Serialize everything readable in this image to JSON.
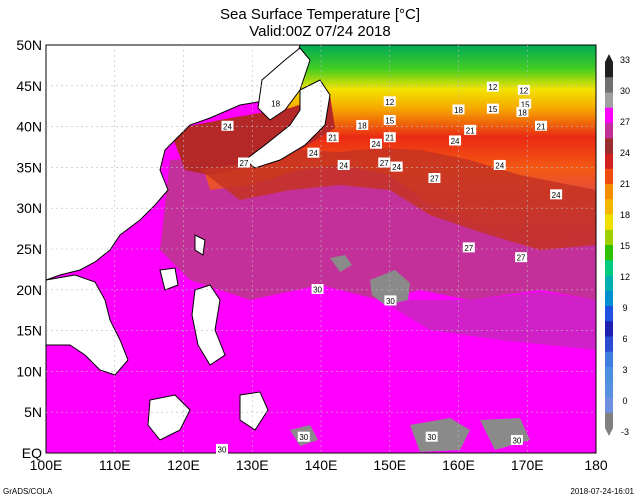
{
  "title": "Sea Surface Temperature [°C]",
  "subtitle": "Valid:00Z 07/24 2018",
  "footer_left": "GrADS/COLA",
  "footer_right": "2018-07-24-16:01",
  "axes": {
    "lon_ticks": [
      "100E",
      "110E",
      "120E",
      "130E",
      "140E",
      "150E",
      "160E",
      "170E",
      "180"
    ],
    "lat_ticks": [
      "50N",
      "45N",
      "40N",
      "35N",
      "30N",
      "25N",
      "20N",
      "15N",
      "10N",
      "5N",
      "EQ"
    ],
    "lon_range": [
      100,
      180
    ],
    "lat_range": [
      0,
      50
    ],
    "grid": true
  },
  "colorbar": {
    "labels": [
      "33",
      "30",
      "27",
      "24",
      "21",
      "18",
      "15",
      "12",
      "9",
      "6",
      "3",
      "0",
      "-3"
    ],
    "colors": [
      "#202020",
      "#707070",
      "#a0a0a0",
      "#ff00ff",
      "#c0309a",
      "#9a2d2d",
      "#d02020",
      "#f04c10",
      "#f28c00",
      "#f5b800",
      "#f0e000",
      "#a0d000",
      "#30c000",
      "#00cc80",
      "#00b0b0",
      "#0090d0",
      "#2050e0",
      "#2020b0",
      "#2b4bd0",
      "#3f7ee0",
      "#4c8fe0",
      "#5890e0",
      "#6f8fe0",
      "#808080"
    ]
  },
  "contour_labels": [
    {
      "v": "12",
      "lon": 165,
      "lat": 44.9
    },
    {
      "v": "12",
      "lon": 169.5,
      "lat": 44.5
    },
    {
      "v": "12",
      "lon": 150,
      "lat": 43.1
    },
    {
      "v": "15",
      "lon": 165,
      "lat": 42.2
    },
    {
      "v": "15",
      "lon": 169.7,
      "lat": 42.8
    },
    {
      "v": "15",
      "lon": 150,
      "lat": 40.8
    },
    {
      "v": "18",
      "lon": 133.4,
      "lat": 42.9
    },
    {
      "v": "18",
      "lon": 146,
      "lat": 40.2
    },
    {
      "v": "18",
      "lon": 160,
      "lat": 42.1
    },
    {
      "v": "18",
      "lon": 169.3,
      "lat": 41.8
    },
    {
      "v": "21",
      "lon": 141.7,
      "lat": 38.7
    },
    {
      "v": "21",
      "lon": 161.7,
      "lat": 39.6
    },
    {
      "v": "21",
      "lon": 172,
      "lat": 40.1
    },
    {
      "v": "21",
      "lon": 150,
      "lat": 38.7
    },
    {
      "v": "24",
      "lon": 126.4,
      "lat": 40.1
    },
    {
      "v": "24",
      "lon": 148,
      "lat": 37.9
    },
    {
      "v": "24",
      "lon": 159.5,
      "lat": 38.3
    },
    {
      "v": "24",
      "lon": 138.9,
      "lat": 36.8
    },
    {
      "v": "24",
      "lon": 143.3,
      "lat": 35.3
    },
    {
      "v": "24",
      "lon": 151,
      "lat": 35.1
    },
    {
      "v": "24",
      "lon": 166,
      "lat": 35.3
    },
    {
      "v": "24",
      "lon": 174.2,
      "lat": 31.7
    },
    {
      "v": "27",
      "lon": 128.8,
      "lat": 35.6
    },
    {
      "v": "27",
      "lon": 149.2,
      "lat": 35.6
    },
    {
      "v": "27",
      "lon": 156.5,
      "lat": 33.7
    },
    {
      "v": "27",
      "lon": 161.5,
      "lat": 25.2
    },
    {
      "v": "27",
      "lon": 169.1,
      "lat": 24.0
    },
    {
      "v": "30",
      "lon": 139.5,
      "lat": 20.1
    },
    {
      "v": "30",
      "lon": 150.1,
      "lat": 18.7
    },
    {
      "v": "30",
      "lon": 125.6,
      "lat": 0.5
    },
    {
      "v": "30",
      "lon": 137.5,
      "lat": 2.0
    },
    {
      "v": "30",
      "lon": 156.1,
      "lat": 2.0
    },
    {
      "v": "30",
      "lon": 168.5,
      "lat": 1.6
    }
  ]
}
